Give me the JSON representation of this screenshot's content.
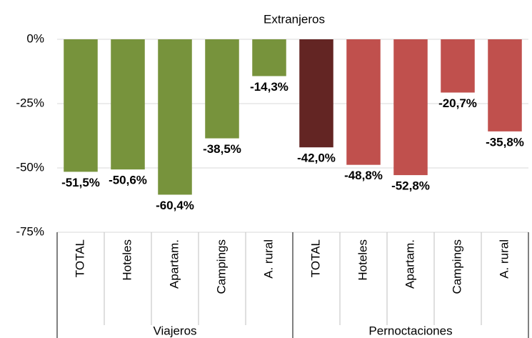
{
  "chart_data": {
    "type": "bar",
    "title": "Extranjeros",
    "ylim": [
      -75,
      0
    ],
    "yticks": [
      {
        "value": 0,
        "label": "0%"
      },
      {
        "value": -25,
        "label": "-25%"
      },
      {
        "value": -50,
        "label": "-50%"
      },
      {
        "value": -75,
        "label": "-75%"
      }
    ],
    "grid": true,
    "title_color": "#5f7a2c",
    "groups": [
      {
        "label": "Viajeros",
        "categories": [
          "TOTAL",
          "Hoteles",
          "Apartam.",
          "Campings",
          "A. rural"
        ],
        "values": [
          -51.5,
          -50.6,
          -60.4,
          -38.5,
          -14.3
        ],
        "value_labels": [
          "-51,5%",
          "-50,6%",
          "-60,4%",
          "-38,5%",
          "-14,3%"
        ],
        "colors": [
          "#77933c",
          "#77933c",
          "#77933c",
          "#77933c",
          "#77933c"
        ],
        "label_colors": [
          "#4f6228",
          "#4f6228",
          "#4f6228",
          "#4f6228",
          "#4f6228"
        ]
      },
      {
        "label": "Pernoctaciones",
        "categories": [
          "TOTAL",
          "Hoteles",
          "Apartam.",
          "Campings",
          "A. rural"
        ],
        "values": [
          -42.0,
          -48.8,
          -52.8,
          -20.7,
          -35.8
        ],
        "value_labels": [
          "-42,0%",
          "-48,8%",
          "-52,8%",
          "-20,7%",
          "-35,8%"
        ],
        "colors": [
          "#632523",
          "#c0504d",
          "#c0504d",
          "#c0504d",
          "#c0504d"
        ],
        "label_colors": [
          "#632523",
          "#b03c39",
          "#b03c39",
          "#b03c39",
          "#b03c39"
        ]
      }
    ]
  }
}
